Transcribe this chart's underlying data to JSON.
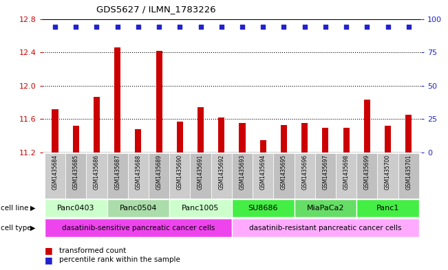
{
  "title": "GDS5627 / ILMN_1783226",
  "samples": [
    "GSM1435684",
    "GSM1435685",
    "GSM1435686",
    "GSM1435687",
    "GSM1435688",
    "GSM1435689",
    "GSM1435690",
    "GSM1435691",
    "GSM1435692",
    "GSM1435693",
    "GSM1435694",
    "GSM1435695",
    "GSM1435696",
    "GSM1435697",
    "GSM1435698",
    "GSM1435699",
    "GSM1435700",
    "GSM1435701"
  ],
  "bar_values": [
    11.72,
    11.52,
    11.87,
    12.46,
    11.48,
    12.42,
    11.57,
    11.74,
    11.62,
    11.55,
    11.35,
    11.53,
    11.55,
    11.5,
    11.5,
    11.83,
    11.52,
    11.65
  ],
  "percentile_values": [
    100,
    100,
    100,
    100,
    100,
    100,
    100,
    100,
    100,
    100,
    100,
    100,
    100,
    100,
    100,
    100,
    100,
    100
  ],
  "bar_color": "#cc0000",
  "dot_color": "#2222cc",
  "ylim_left": [
    11.2,
    12.8
  ],
  "ylim_right": [
    0,
    100
  ],
  "yticks_left": [
    11.2,
    11.6,
    12.0,
    12.4,
    12.8
  ],
  "yticks_right": [
    0,
    25,
    50,
    75,
    100
  ],
  "cell_line_groups": [
    {
      "label": "Panc0403",
      "start": 0,
      "end": 2,
      "color": "#ccffcc"
    },
    {
      "label": "Panc0504",
      "start": 3,
      "end": 5,
      "color": "#aaddaa"
    },
    {
      "label": "Panc1005",
      "start": 6,
      "end": 8,
      "color": "#ccffcc"
    },
    {
      "label": "SU8686",
      "start": 9,
      "end": 11,
      "color": "#44ee44"
    },
    {
      "label": "MiaPaCa2",
      "start": 12,
      "end": 14,
      "color": "#66dd66"
    },
    {
      "label": "Panc1",
      "start": 15,
      "end": 17,
      "color": "#44ee44"
    }
  ],
  "cell_type_groups": [
    {
      "label": "dasatinib-sensitive pancreatic cancer cells",
      "start": 0,
      "end": 8,
      "color": "#ee44ee"
    },
    {
      "label": "dasatinib-resistant pancreatic cancer cells",
      "start": 9,
      "end": 17,
      "color": "#ffaaff"
    }
  ],
  "legend_bar_label": "transformed count",
  "legend_dot_label": "percentile rank within the sample",
  "tick_color_left": "#cc0000",
  "tick_color_right": "#2222cc",
  "bar_width": 0.3
}
